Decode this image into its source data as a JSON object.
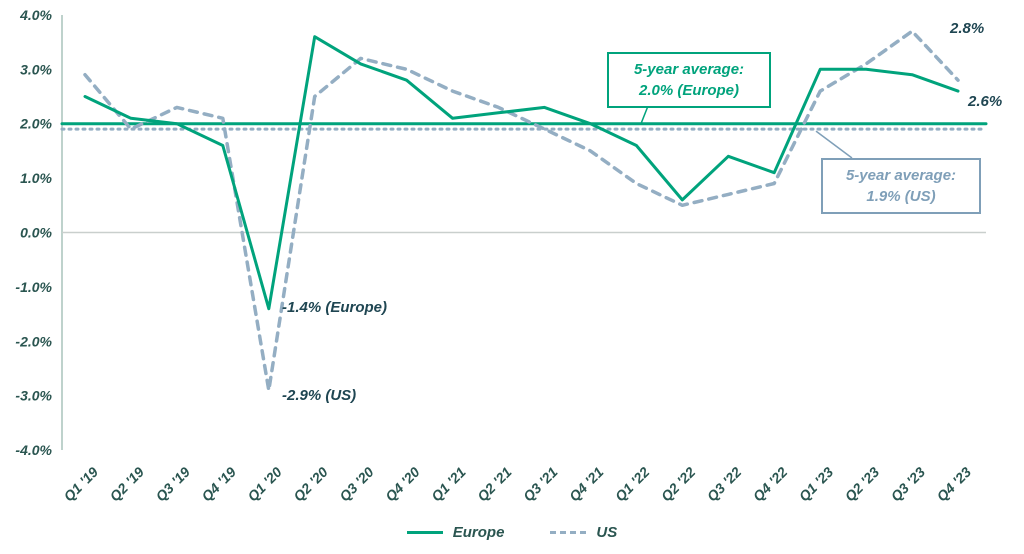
{
  "chart_data": {
    "type": "line",
    "title": "",
    "categories": [
      "Q1 '19",
      "Q2 '19",
      "Q3 '19",
      "Q4 '19",
      "Q1 '20",
      "Q2 '20",
      "Q3 '20",
      "Q4 '20",
      "Q1 '21",
      "Q2 '21",
      "Q3 '21",
      "Q4 '21",
      "Q1 '22",
      "Q2 '22",
      "Q3 '22",
      "Q4 '22",
      "Q1 '23",
      "Q2 '23",
      "Q3 '23",
      "Q4 '23"
    ],
    "series": [
      {
        "name": "Europe",
        "color": "#00a37c",
        "style": "solid",
        "values": [
          2.5,
          2.1,
          2.0,
          1.6,
          -1.4,
          3.6,
          3.1,
          2.8,
          2.1,
          2.2,
          2.3,
          2.0,
          1.6,
          0.6,
          1.4,
          1.1,
          3.0,
          3.0,
          2.9,
          2.6
        ]
      },
      {
        "name": "US",
        "color": "#94aec3",
        "style": "dashed",
        "values": [
          2.9,
          1.9,
          2.3,
          2.1,
          -2.9,
          2.5,
          3.2,
          3.0,
          2.6,
          2.3,
          1.9,
          1.5,
          0.9,
          0.5,
          0.7,
          0.9,
          2.6,
          3.1,
          3.7,
          2.8
        ]
      }
    ],
    "reference_lines": [
      {
        "series": "Europe",
        "value": 2.0,
        "color": "#00a37c",
        "style": "solid"
      },
      {
        "series": "US",
        "value": 1.9,
        "color": "#94aec3",
        "style": "dotted"
      }
    ],
    "callouts": [
      {
        "line1": "5-year average:",
        "line2": "2.0% (Europe)",
        "series": "Europe"
      },
      {
        "line1": "5-year average:",
        "line2": "1.9% (US)",
        "series": "US"
      }
    ],
    "point_labels": [
      {
        "text": "-1.4% (Europe)",
        "series": "Europe",
        "category": "Q1 '20",
        "value": -1.4
      },
      {
        "text": "-2.9% (US)",
        "series": "US",
        "category": "Q1 '20",
        "value": -2.9
      },
      {
        "text": "2.8%",
        "series": "US",
        "category": "Q4 '23",
        "value": 2.8
      },
      {
        "text": "2.6%",
        "series": "Europe",
        "category": "Q4 '23",
        "value": 2.6
      }
    ],
    "yticks": [
      {
        "label": "4.0%",
        "value": 4
      },
      {
        "label": "3.0%",
        "value": 3
      },
      {
        "label": "2.0%",
        "value": 2
      },
      {
        "label": "1.0%",
        "value": 1
      },
      {
        "label": "0.0%",
        "value": 0
      },
      {
        "label": "-1.0%",
        "value": -1
      },
      {
        "label": "-2.0%",
        "value": -2
      },
      {
        "label": "-3.0%",
        "value": -3
      },
      {
        "label": "-4.0%",
        "value": -4
      }
    ],
    "ylim": [
      -4.0,
      4.0
    ],
    "xlabel": "",
    "ylabel": "",
    "grid": "zero-line-only",
    "legend_position": "bottom-center",
    "legend": [
      "Europe",
      "US"
    ]
  }
}
